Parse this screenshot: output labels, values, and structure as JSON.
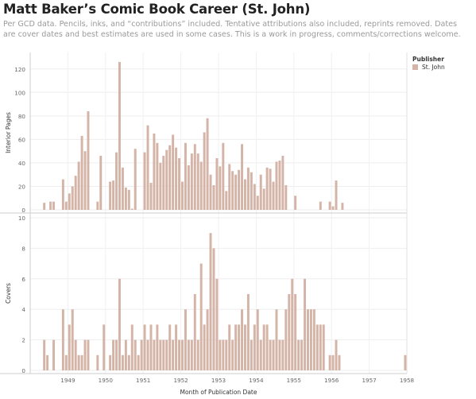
{
  "title": "Matt Baker’s Comic Book Career (St. John)",
  "subtitle": "Per GCD data. Pencils, inks, and “contributions” included. Tentative attributions also included, reprints removed. Dates are cover dates and best estimates are used in some cases. This is a work in progress, comments/corrections welcome.",
  "legend": {
    "title": "Publisher",
    "items": [
      {
        "label": "St. John",
        "color": "#d5b4a8"
      }
    ]
  },
  "chart_data": {
    "type": "bar",
    "xlabel": "Month of Publication Date",
    "xticks": [
      "1949",
      "1950",
      "1951",
      "1952",
      "1953",
      "1954",
      "1955",
      "1956",
      "1957",
      "1958"
    ],
    "color": "#d5b4a8",
    "grid": true,
    "panels": [
      {
        "ylabel": "Interior Pages",
        "ylim": [
          0,
          130
        ],
        "yticks": [
          0,
          20,
          40,
          60,
          80,
          100,
          120
        ],
        "points": [
          [
            "1948-11",
            6
          ],
          [
            "1949-01",
            7
          ],
          [
            "1949-02",
            7
          ],
          [
            "1949-05",
            26
          ],
          [
            "1949-06",
            7
          ],
          [
            "1949-07",
            14
          ],
          [
            "1949-08",
            20
          ],
          [
            "1949-09",
            29
          ],
          [
            "1949-10",
            41
          ],
          [
            "1949-11",
            63
          ],
          [
            "1949-12",
            50
          ],
          [
            "1950-01",
            84
          ],
          [
            "1950-04",
            7
          ],
          [
            "1950-05",
            46
          ],
          [
            "1950-08",
            24
          ],
          [
            "1950-09",
            25
          ],
          [
            "1950-10",
            49
          ],
          [
            "1950-11",
            126
          ],
          [
            "1950-12",
            36
          ],
          [
            "1951-01",
            19
          ],
          [
            "1951-02",
            17
          ],
          [
            "1951-03",
            1
          ],
          [
            "1951-04",
            52
          ],
          [
            "1951-07",
            49
          ],
          [
            "1951-08",
            72
          ],
          [
            "1951-09",
            23
          ],
          [
            "1951-10",
            65
          ],
          [
            "1951-11",
            57
          ],
          [
            "1951-12",
            40
          ],
          [
            "1952-01",
            46
          ],
          [
            "1952-02",
            51
          ],
          [
            "1952-03",
            55
          ],
          [
            "1952-04",
            64
          ],
          [
            "1952-05",
            53
          ],
          [
            "1952-06",
            44
          ],
          [
            "1952-07",
            24
          ],
          [
            "1952-08",
            57
          ],
          [
            "1952-09",
            38
          ],
          [
            "1952-10",
            48
          ],
          [
            "1952-11",
            56
          ],
          [
            "1952-12",
            48
          ],
          [
            "1953-01",
            41
          ],
          [
            "1953-02",
            66
          ],
          [
            "1953-03",
            78
          ],
          [
            "1953-04",
            30
          ],
          [
            "1953-05",
            21
          ],
          [
            "1953-06",
            44
          ],
          [
            "1953-07",
            37
          ],
          [
            "1953-08",
            57
          ],
          [
            "1953-09",
            16
          ],
          [
            "1953-10",
            39
          ],
          [
            "1953-11",
            33
          ],
          [
            "1953-12",
            30
          ],
          [
            "1954-01",
            34
          ],
          [
            "1954-02",
            56
          ],
          [
            "1954-03",
            26
          ],
          [
            "1954-04",
            36
          ],
          [
            "1954-05",
            32
          ],
          [
            "1954-06",
            22
          ],
          [
            "1954-07",
            12
          ],
          [
            "1954-08",
            30
          ],
          [
            "1954-09",
            18
          ],
          [
            "1954-10",
            36
          ],
          [
            "1954-11",
            35
          ],
          [
            "1954-12",
            24
          ],
          [
            "1955-01",
            41
          ],
          [
            "1955-02",
            42
          ],
          [
            "1955-03",
            46
          ],
          [
            "1955-04",
            21
          ],
          [
            "1955-07",
            12
          ],
          [
            "1956-03",
            7
          ],
          [
            "1956-06",
            7
          ],
          [
            "1956-07",
            3
          ],
          [
            "1956-08",
            25
          ],
          [
            "1956-10",
            6
          ]
        ]
      },
      {
        "ylabel": "Covers",
        "ylim": [
          0,
          10
        ],
        "yticks": [
          0,
          2,
          4,
          6,
          8,
          10
        ],
        "points": [
          [
            "1948-11",
            2
          ],
          [
            "1948-12",
            1
          ],
          [
            "1949-02",
            2
          ],
          [
            "1949-05",
            4
          ],
          [
            "1949-06",
            1
          ],
          [
            "1949-07",
            3
          ],
          [
            "1949-08",
            4
          ],
          [
            "1949-09",
            2
          ],
          [
            "1949-10",
            1
          ],
          [
            "1949-11",
            1
          ],
          [
            "1949-12",
            2
          ],
          [
            "1950-01",
            2
          ],
          [
            "1950-04",
            1
          ],
          [
            "1950-06",
            3
          ],
          [
            "1950-08",
            1
          ],
          [
            "1950-09",
            2
          ],
          [
            "1950-10",
            2
          ],
          [
            "1950-11",
            6
          ],
          [
            "1950-12",
            1
          ],
          [
            "1951-01",
            2
          ],
          [
            "1951-02",
            1
          ],
          [
            "1951-03",
            3
          ],
          [
            "1951-04",
            2
          ],
          [
            "1951-05",
            1
          ],
          [
            "1951-06",
            2
          ],
          [
            "1951-07",
            3
          ],
          [
            "1951-08",
            2
          ],
          [
            "1951-09",
            3
          ],
          [
            "1951-10",
            2
          ],
          [
            "1951-11",
            3
          ],
          [
            "1951-12",
            2
          ],
          [
            "1952-01",
            2
          ],
          [
            "1952-02",
            2
          ],
          [
            "1952-03",
            3
          ],
          [
            "1952-04",
            2
          ],
          [
            "1952-05",
            3
          ],
          [
            "1952-06",
            2
          ],
          [
            "1952-07",
            2
          ],
          [
            "1952-08",
            4
          ],
          [
            "1952-09",
            2
          ],
          [
            "1952-10",
            2
          ],
          [
            "1952-11",
            5
          ],
          [
            "1952-12",
            2
          ],
          [
            "1953-01",
            7
          ],
          [
            "1953-02",
            3
          ],
          [
            "1953-03",
            4
          ],
          [
            "1953-04",
            9
          ],
          [
            "1953-05",
            8
          ],
          [
            "1953-06",
            6
          ],
          [
            "1953-07",
            2
          ],
          [
            "1953-08",
            2
          ],
          [
            "1953-09",
            2
          ],
          [
            "1953-10",
            3
          ],
          [
            "1953-11",
            2
          ],
          [
            "1953-12",
            3
          ],
          [
            "1954-01",
            3
          ],
          [
            "1954-02",
            4
          ],
          [
            "1954-03",
            3
          ],
          [
            "1954-04",
            5
          ],
          [
            "1954-05",
            2
          ],
          [
            "1954-06",
            3
          ],
          [
            "1954-07",
            4
          ],
          [
            "1954-08",
            2
          ],
          [
            "1954-09",
            3
          ],
          [
            "1954-10",
            3
          ],
          [
            "1954-11",
            2
          ],
          [
            "1954-12",
            2
          ],
          [
            "1955-01",
            4
          ],
          [
            "1955-02",
            2
          ],
          [
            "1955-03",
            2
          ],
          [
            "1955-04",
            4
          ],
          [
            "1955-05",
            5
          ],
          [
            "1955-06",
            6
          ],
          [
            "1955-07",
            5
          ],
          [
            "1955-08",
            2
          ],
          [
            "1955-09",
            2
          ],
          [
            "1955-10",
            6
          ],
          [
            "1955-11",
            4
          ],
          [
            "1955-12",
            4
          ],
          [
            "1956-01",
            4
          ],
          [
            "1956-02",
            3
          ],
          [
            "1956-03",
            3
          ],
          [
            "1956-04",
            3
          ],
          [
            "1956-06",
            1
          ],
          [
            "1956-07",
            1
          ],
          [
            "1956-08",
            2
          ],
          [
            "1956-09",
            1
          ],
          [
            "1958-06",
            1
          ]
        ]
      }
    ]
  }
}
